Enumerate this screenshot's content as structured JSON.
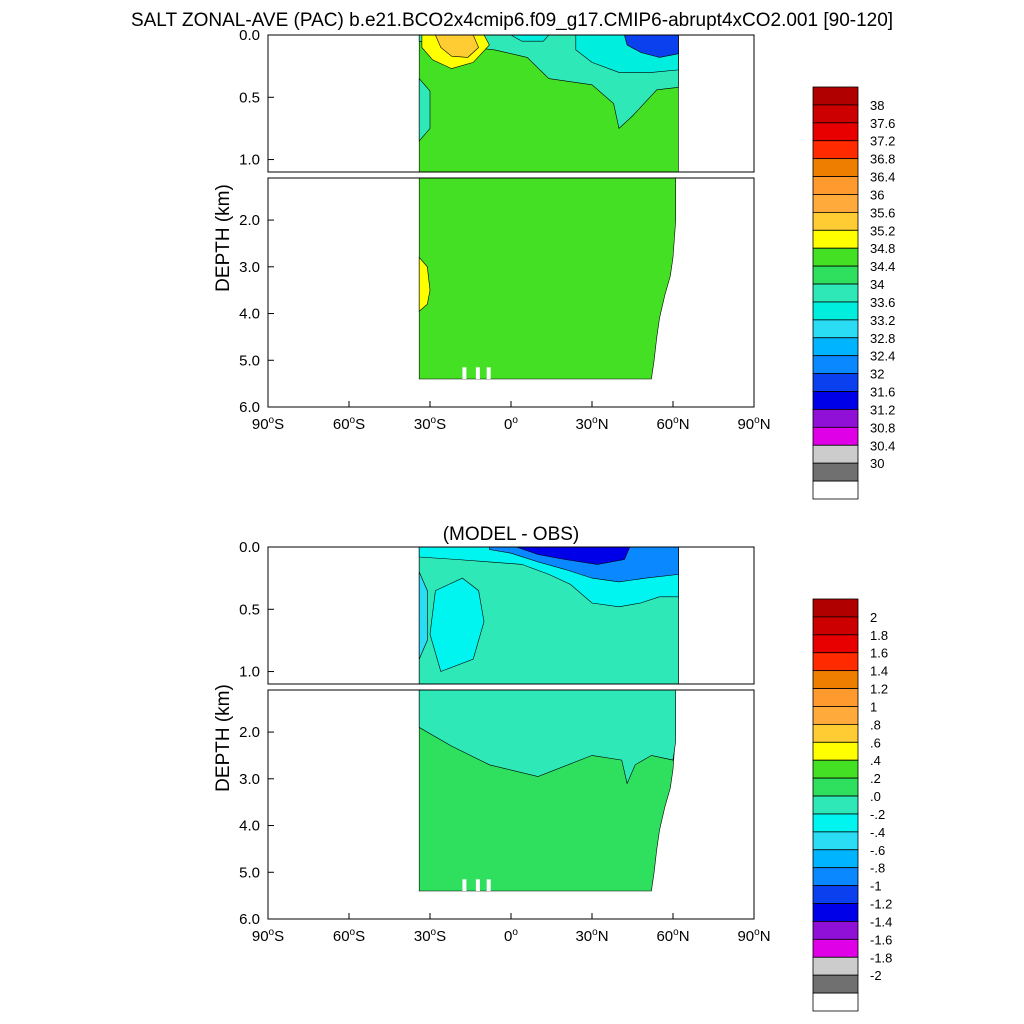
{
  "title": "SALT ZONAL-AVE (PAC) b.e21.BCO2x4cmip6.f09_g17.CMIP6-abrupt4xCO2.001 [90-120]",
  "chart_data": [
    {
      "type": "heatmap",
      "name": "model-panel",
      "title": "",
      "xlabel": "",
      "ylabel": "DEPTH (km)",
      "xlim": [
        -90,
        90
      ],
      "ylim": [
        6.0,
        0.0
      ],
      "x_ticks": [
        {
          "value": -90,
          "num": "90",
          "hemi": "S"
        },
        {
          "value": -60,
          "num": "60",
          "hemi": "S"
        },
        {
          "value": -30,
          "num": "30",
          "hemi": "S"
        },
        {
          "value": 0,
          "num": "0",
          "hemi": ""
        },
        {
          "value": 30,
          "num": "30",
          "hemi": "N"
        },
        {
          "value": 60,
          "num": "60",
          "hemi": "N"
        },
        {
          "value": 90,
          "num": "90",
          "hemi": "N"
        }
      ],
      "y_ticks_upper": [
        "0.0",
        "0.5",
        "1.0"
      ],
      "y_ticks_lower": [
        "2.0",
        "3.0",
        "4.0",
        "5.0",
        "6.0"
      ],
      "regions": [
        {
          "label": "background",
          "value": 34.6
        },
        {
          "label": "upper-cyan",
          "value": 33.9
        },
        {
          "label": "subtropical-max",
          "value": 35.0
        },
        {
          "label": "subtropical-core",
          "value": 35.4
        },
        {
          "label": "deep-south-max",
          "value": 35.0
        },
        {
          "label": "north-surface-fresh",
          "value": 33.4
        },
        {
          "label": "north-surface-freshest",
          "value": 31.8
        },
        {
          "label": "equatorial-surface",
          "value": 33.6
        }
      ],
      "colorbar": {
        "labels": [
          "38",
          "37.6",
          "37.2",
          "36.8",
          "36.4",
          "36",
          "35.6",
          "35.2",
          "34.8",
          "34.4",
          "34",
          "33.6",
          "33.2",
          "32.8",
          "32.4",
          "32",
          "31.6",
          "31.2",
          "30.8",
          "30.4",
          "30"
        ],
        "colors": [
          "#b00000",
          "#cc0000",
          "#e80000",
          "#ff2a00",
          "#ee7e00",
          "#ff9a2e",
          "#ffaa3a",
          "#ffcc33",
          "#ffff00",
          "#44e024",
          "#2ee05e",
          "#2ee8b8",
          "#00eedd",
          "#2adcf4",
          "#00b4ff",
          "#0a88ff",
          "#0a40ee",
          "#0000e8",
          "#9010d8",
          "#e000e8",
          "#cccccc",
          "#707070",
          "#ffffff"
        ]
      }
    },
    {
      "type": "heatmap",
      "name": "difference-panel",
      "title": "(MODEL - OBS)",
      "xlabel": "",
      "ylabel": "DEPTH (km)",
      "xlim": [
        -90,
        90
      ],
      "ylim": [
        6.0,
        0.0
      ],
      "x_ticks": [
        {
          "value": -90,
          "num": "90",
          "hemi": "S"
        },
        {
          "value": -60,
          "num": "60",
          "hemi": "S"
        },
        {
          "value": -30,
          "num": "30",
          "hemi": "S"
        },
        {
          "value": 0,
          "num": "0",
          "hemi": ""
        },
        {
          "value": 30,
          "num": "30",
          "hemi": "N"
        },
        {
          "value": 60,
          "num": "60",
          "hemi": "N"
        },
        {
          "value": 90,
          "num": "90",
          "hemi": "N"
        }
      ],
      "y_ticks_upper": [
        "0.0",
        "0.5",
        "1.0"
      ],
      "y_ticks_lower": [
        "2.0",
        "3.0",
        "4.0",
        "5.0",
        "6.0"
      ],
      "regions": [
        {
          "label": "deep-positive",
          "value": 0.1
        },
        {
          "label": "mid-negative",
          "value": -0.1
        },
        {
          "label": "upper-negative",
          "value": -0.3
        },
        {
          "label": "west-upper-negative",
          "value": -0.5
        },
        {
          "label": "surface-fresh-bias",
          "value": -0.9
        },
        {
          "label": "surface-strong-fresh-bias",
          "value": -1.3
        }
      ],
      "colorbar": {
        "labels": [
          "2",
          "1.8",
          "1.6",
          "1.4",
          "1.2",
          "1",
          ".8",
          ".6",
          ".4",
          ".2",
          ".0",
          "-.2",
          "-.4",
          "-.6",
          "-.8",
          "-1",
          "-1.2",
          "-1.4",
          "-1.6",
          "-1.8",
          "-2"
        ],
        "colors": [
          "#b00000",
          "#cc0000",
          "#e80000",
          "#ff2a00",
          "#ee7e00",
          "#ff9a2e",
          "#ffaa3a",
          "#ffcc33",
          "#ffff00",
          "#44e024",
          "#2ee05e",
          "#2ee8b8",
          "#00f4f0",
          "#2adcf4",
          "#00b4ff",
          "#0a88ff",
          "#0a40ee",
          "#0000e8",
          "#9010d8",
          "#e000e8",
          "#cccccc",
          "#707070",
          "#ffffff"
        ]
      }
    }
  ]
}
